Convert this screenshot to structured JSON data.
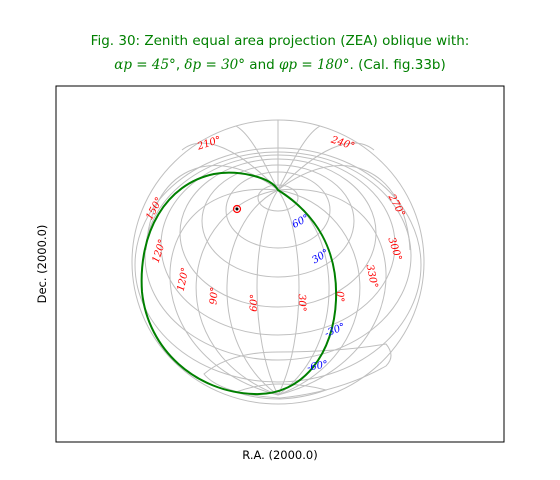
{
  "figure": {
    "title_line1": "Fig. 30: Zenith equal area projection (ZEA) oblique with:",
    "title_line2_parts": [
      "αp = 45°",
      ", ",
      "δp = 30°",
      " and ",
      "φp = 180°",
      ". (Cal. fig.33b)"
    ],
    "xlabel": "R.A. (2000.0)",
    "ylabel": "Dec. (2000.0)"
  },
  "projection": {
    "type": "ZEA",
    "alpha_p_deg": 45,
    "delta_p_deg": 30,
    "phi_p_deg": 180
  },
  "colors": {
    "title": "#008000",
    "grid": "#bfbfbf",
    "highlight_curve": "#008000",
    "ra_labels": "#ff0000",
    "dec_labels": "#0000ff",
    "marker": "#ff0000"
  },
  "ra_labels": [
    "210°",
    "240°",
    "150°",
    "270°",
    "120°",
    "300°",
    "120°",
    "330°",
    "90°",
    "60°",
    "30°",
    "0°"
  ],
  "dec_labels": [
    "60°",
    "30°",
    "-30°",
    "-60°"
  ]
}
